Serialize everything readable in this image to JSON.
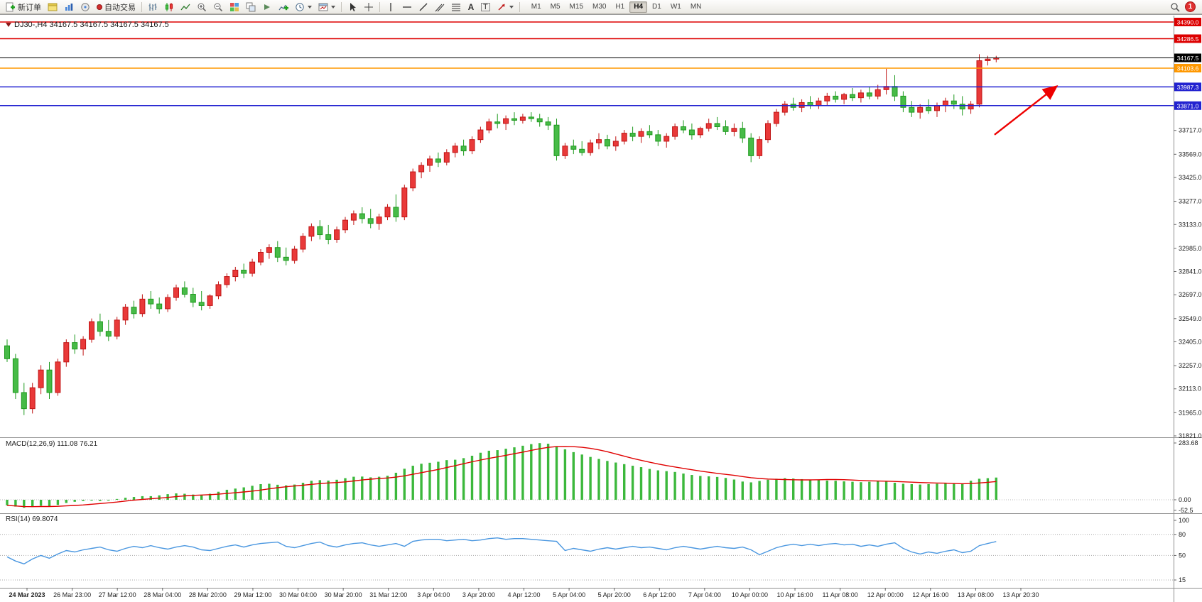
{
  "toolbar": {
    "new_order": "新订单",
    "autotrading": "自动交易",
    "timeframes": [
      "M1",
      "M5",
      "M15",
      "M30",
      "H1",
      "H4",
      "D1",
      "W1",
      "MN"
    ],
    "active_timeframe": "H4",
    "notification_count": "1",
    "glyphs": {
      "text_tool": "A",
      "label_tool": "T"
    }
  },
  "chart": {
    "symbol_header": "DJ30-,H4  34167.5 34167.5 34167.5 34167.5",
    "macd_label": "MACD(12,26,9) 111.08 76.21",
    "rsi_label": "RSI(14) 69.8074"
  },
  "chart_data": {
    "type": "candlestick",
    "symbol": "DJ30-",
    "timeframe": "H4",
    "current_price": 34167.5,
    "colors": {
      "up": "#e93939",
      "up_stroke": "#c01616",
      "down": "#47bb47",
      "down_stroke": "#1e9a1e",
      "macd_hist": "#3cb83c",
      "macd_signal": "#e00000",
      "rsi": "#4a97e0",
      "level_red": "#dd0000",
      "level_orange": "#ff9800",
      "level_blue": "#2222d0",
      "level_black": "#000000",
      "arrow": "#ee0000"
    },
    "price_axis": {
      "min": 31821.0,
      "max": 34390.0,
      "tick_labels": [
        "33717.0",
        "33569.0",
        "33425.0",
        "33277.0",
        "33133.0",
        "32985.0",
        "32841.0",
        "32697.0",
        "32549.0",
        "32405.0",
        "32257.0",
        "32113.0",
        "31965.0",
        "31821.0"
      ]
    },
    "levels": [
      {
        "label": "34390.0",
        "price": 34390.0,
        "color": "#dd0000"
      },
      {
        "label": "34286.5",
        "price": 34286.5,
        "color": "#dd0000"
      },
      {
        "label": "34167.5",
        "price": 34167.5,
        "color": "#000000",
        "current": true
      },
      {
        "label": "34103.6",
        "price": 34103.6,
        "color": "#ff9800"
      },
      {
        "label": "33987.3",
        "price": 33987.3,
        "color": "#2222d0"
      },
      {
        "label": "33871.0",
        "price": 33871.0,
        "color": "#2222d0"
      }
    ],
    "candles": [
      [
        32380,
        32420,
        32280,
        32300
      ],
      [
        32300,
        32330,
        32050,
        32090
      ],
      [
        32090,
        32150,
        31950,
        31990
      ],
      [
        31990,
        32150,
        31960,
        32120
      ],
      [
        32120,
        32260,
        32080,
        32230
      ],
      [
        32230,
        32280,
        32050,
        32090
      ],
      [
        32090,
        32300,
        32070,
        32280
      ],
      [
        32280,
        32420,
        32250,
        32400
      ],
      [
        32400,
        32450,
        32330,
        32360
      ],
      [
        32360,
        32440,
        32320,
        32420
      ],
      [
        32420,
        32550,
        32400,
        32530
      ],
      [
        32530,
        32580,
        32440,
        32470
      ],
      [
        32470,
        32540,
        32410,
        32440
      ],
      [
        32440,
        32560,
        32420,
        32540
      ],
      [
        32540,
        32640,
        32510,
        32620
      ],
      [
        32620,
        32660,
        32550,
        32580
      ],
      [
        32580,
        32700,
        32560,
        32670
      ],
      [
        32670,
        32720,
        32610,
        32640
      ],
      [
        32640,
        32680,
        32580,
        32610
      ],
      [
        32610,
        32700,
        32590,
        32680
      ],
      [
        32680,
        32760,
        32660,
        32740
      ],
      [
        32740,
        32780,
        32680,
        32700
      ],
      [
        32700,
        32740,
        32620,
        32650
      ],
      [
        32650,
        32720,
        32600,
        32630
      ],
      [
        32630,
        32700,
        32610,
        32690
      ],
      [
        32690,
        32780,
        32670,
        32760
      ],
      [
        32760,
        32830,
        32740,
        32810
      ],
      [
        32810,
        32870,
        32780,
        32850
      ],
      [
        32850,
        32890,
        32800,
        32830
      ],
      [
        32830,
        32920,
        32810,
        32900
      ],
      [
        32900,
        32980,
        32880,
        32960
      ],
      [
        32960,
        33010,
        32920,
        32990
      ],
      [
        32990,
        33030,
        32900,
        32930
      ],
      [
        32930,
        32990,
        32880,
        32910
      ],
      [
        32910,
        33000,
        32890,
        32980
      ],
      [
        32980,
        33080,
        32960,
        33060
      ],
      [
        33060,
        33140,
        33030,
        33120
      ],
      [
        33120,
        33160,
        33040,
        33070
      ],
      [
        33070,
        33130,
        33010,
        33040
      ],
      [
        33040,
        33120,
        33020,
        33100
      ],
      [
        33100,
        33180,
        33080,
        33160
      ],
      [
        33160,
        33220,
        33130,
        33200
      ],
      [
        33200,
        33240,
        33140,
        33170
      ],
      [
        33170,
        33230,
        33110,
        33140
      ],
      [
        33140,
        33200,
        33100,
        33180
      ],
      [
        33180,
        33260,
        33160,
        33240
      ],
      [
        33240,
        33320,
        33150,
        33180
      ],
      [
        33180,
        33380,
        33160,
        33360
      ],
      [
        33360,
        33480,
        33340,
        33460
      ],
      [
        33460,
        33520,
        33420,
        33500
      ],
      [
        33500,
        33560,
        33460,
        33540
      ],
      [
        33540,
        33580,
        33490,
        33520
      ],
      [
        33520,
        33600,
        33500,
        33580
      ],
      [
        33580,
        33640,
        33550,
        33620
      ],
      [
        33620,
        33660,
        33560,
        33590
      ],
      [
        33590,
        33680,
        33570,
        33660
      ],
      [
        33660,
        33740,
        33640,
        33720
      ],
      [
        33720,
        33790,
        33700,
        33770
      ],
      [
        33770,
        33820,
        33730,
        33760
      ],
      [
        33760,
        33810,
        33720,
        33790
      ],
      [
        33790,
        33830,
        33750,
        33780
      ],
      [
        33780,
        33820,
        33760,
        33800
      ],
      [
        33800,
        33830,
        33770,
        33790
      ],
      [
        33790,
        33820,
        33740,
        33770
      ],
      [
        33770,
        33800,
        33720,
        33750
      ],
      [
        33750,
        33790,
        33530,
        33560
      ],
      [
        33560,
        33640,
        33540,
        33620
      ],
      [
        33620,
        33660,
        33570,
        33600
      ],
      [
        33600,
        33650,
        33560,
        33580
      ],
      [
        33580,
        33660,
        33560,
        33640
      ],
      [
        33640,
        33700,
        33600,
        33660
      ],
      [
        33660,
        33690,
        33600,
        33620
      ],
      [
        33620,
        33680,
        33590,
        33650
      ],
      [
        33650,
        33720,
        33630,
        33700
      ],
      [
        33700,
        33740,
        33650,
        33680
      ],
      [
        33680,
        33730,
        33640,
        33710
      ],
      [
        33710,
        33750,
        33670,
        33690
      ],
      [
        33690,
        33720,
        33620,
        33650
      ],
      [
        33650,
        33700,
        33610,
        33680
      ],
      [
        33680,
        33760,
        33660,
        33740
      ],
      [
        33740,
        33780,
        33700,
        33720
      ],
      [
        33720,
        33760,
        33660,
        33690
      ],
      [
        33690,
        33740,
        33670,
        33730
      ],
      [
        33730,
        33790,
        33710,
        33760
      ],
      [
        33760,
        33800,
        33720,
        33740
      ],
      [
        33740,
        33780,
        33690,
        33710
      ],
      [
        33710,
        33760,
        33680,
        33730
      ],
      [
        33730,
        33770,
        33640,
        33670
      ],
      [
        33670,
        33700,
        33520,
        33560
      ],
      [
        33560,
        33680,
        33540,
        33660
      ],
      [
        33660,
        33780,
        33640,
        33760
      ],
      [
        33760,
        33850,
        33740,
        33830
      ],
      [
        33830,
        33900,
        33810,
        33880
      ],
      [
        33880,
        33920,
        33840,
        33860
      ],
      [
        33860,
        33910,
        33830,
        33890
      ],
      [
        33890,
        33930,
        33850,
        33870
      ],
      [
        33870,
        33920,
        33850,
        33900
      ],
      [
        33900,
        33950,
        33870,
        33930
      ],
      [
        33930,
        33960,
        33890,
        33910
      ],
      [
        33910,
        33950,
        33880,
        33940
      ],
      [
        33940,
        33980,
        33900,
        33920
      ],
      [
        33920,
        33970,
        33890,
        33950
      ],
      [
        33950,
        33990,
        33910,
        33930
      ],
      [
        33930,
        34000,
        33910,
        33970
      ],
      [
        33970,
        34100,
        33940,
        33990
      ],
      [
        33990,
        34060,
        33900,
        33930
      ],
      [
        33930,
        33960,
        33830,
        33860
      ],
      [
        33860,
        33900,
        33800,
        33830
      ],
      [
        33830,
        33880,
        33790,
        33860
      ],
      [
        33860,
        33910,
        33820,
        33840
      ],
      [
        33840,
        33890,
        33800,
        33870
      ],
      [
        33870,
        33920,
        33830,
        33900
      ],
      [
        33900,
        33940,
        33850,
        33880
      ],
      [
        33880,
        33930,
        33810,
        33850
      ],
      [
        33850,
        33900,
        33820,
        33880
      ],
      [
        33880,
        34190,
        33860,
        34150
      ],
      [
        34150,
        34180,
        34120,
        34160
      ],
      [
        34160,
        34180,
        34140,
        34167.5
      ]
    ],
    "macd": {
      "values": [
        -28,
        -34,
        -40,
        -36,
        -30,
        -34,
        -26,
        -16,
        -10,
        -6,
        -4,
        -6,
        -4,
        4,
        10,
        14,
        18,
        18,
        22,
        28,
        32,
        30,
        26,
        25,
        30,
        40,
        50,
        56,
        62,
        70,
        78,
        80,
        75,
        72,
        76,
        85,
        95,
        98,
        96,
        100,
        108,
        115,
        116,
        112,
        115,
        120,
        135,
        155,
        170,
        180,
        185,
        190,
        198,
        200,
        208,
        220,
        235,
        245,
        248,
        255,
        262,
        270,
        278,
        283,
        280,
        268,
        252,
        238,
        226,
        214,
        204,
        194,
        186,
        178,
        170,
        163,
        154,
        147,
        143,
        139,
        131,
        124,
        119,
        117,
        114,
        109,
        101,
        91,
        87,
        94,
        100,
        105,
        108,
        106,
        103,
        100,
        98,
        96,
        95,
        92,
        90,
        88,
        90,
        95,
        92,
        85,
        80,
        78,
        76,
        78,
        80,
        82,
        80,
        82,
        95,
        105,
        108,
        111
      ],
      "scale": [
        "283.68",
        "0.00",
        "-52.5"
      ],
      "current_main": 111.08,
      "current_signal": 76.21
    },
    "rsi": {
      "values": [
        48,
        42,
        38,
        45,
        50,
        46,
        52,
        57,
        55,
        58,
        60,
        62,
        58,
        56,
        60,
        63,
        61,
        64,
        61,
        59,
        62,
        64,
        62,
        58,
        57,
        60,
        63,
        65,
        62,
        65,
        67,
        68,
        69,
        63,
        61,
        64,
        67,
        69,
        64,
        62,
        65,
        67,
        68,
        65,
        63,
        65,
        67,
        63,
        70,
        72,
        73,
        73,
        71,
        72,
        73,
        71,
        72,
        74,
        75,
        73,
        74,
        74,
        73,
        72,
        71,
        70,
        57,
        60,
        58,
        56,
        59,
        61,
        59,
        61,
        63,
        61,
        62,
        60,
        58,
        61,
        63,
        61,
        59,
        61,
        63,
        61,
        60,
        62,
        58,
        51,
        56,
        61,
        64,
        66,
        64,
        66,
        64,
        66,
        67,
        65,
        66,
        63,
        65,
        63,
        66,
        68,
        60,
        55,
        52,
        55,
        53,
        56,
        58,
        54,
        56,
        64,
        67,
        69.8
      ],
      "scale": [
        "100",
        "80",
        "50",
        "15"
      ],
      "dotted_levels": [
        80,
        50,
        15
      ],
      "current": 69.8074
    },
    "x_labels": [
      "24 Mar 2023",
      "26 Mar 23:00",
      "27 Mar 12:00",
      "28 Mar 04:00",
      "28 Mar 20:00",
      "29 Mar 12:00",
      "30 Mar 04:00",
      "30 Mar 20:00",
      "31 Mar 12:00",
      "3 Apr 04:00",
      "3 Apr 20:00",
      "4 Apr 12:00",
      "5 Apr 04:00",
      "5 Apr 20:00",
      "6 Apr 12:00",
      "7 Apr 04:00",
      "10 Apr 00:00",
      "10 Apr 16:00",
      "11 Apr 08:00",
      "12 Apr 00:00",
      "12 Apr 16:00",
      "13 Apr 08:00",
      "13 Apr 20:30"
    ],
    "annotations": [
      {
        "type": "arrow",
        "from_bar": 116.8,
        "from_price": 33690,
        "to_bar": 124,
        "to_price": 33985,
        "color": "#ee0000"
      }
    ]
  }
}
